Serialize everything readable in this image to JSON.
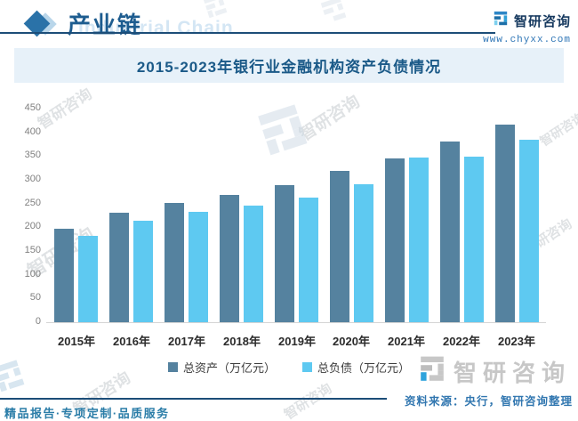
{
  "header": {
    "brand_zh": "产业链",
    "brand_watermark": "Industrial Chain",
    "logo_text": "智研咨询",
    "website": "www.chyxx.com"
  },
  "title": {
    "text": "2015-2023年银行业金融机构资产负债情况"
  },
  "chart_data": {
    "type": "bar",
    "title": "2015-2023年银行业金融机构资产负债情况",
    "categories": [
      "2015年",
      "2016年",
      "2017年",
      "2018年",
      "2019年",
      "2020年",
      "2021年",
      "2022年",
      "2023年"
    ],
    "series": [
      {
        "name": "总资产（万亿元）",
        "color": "#55829f",
        "values": [
          197,
          230,
          251,
          268,
          288,
          318,
          345,
          380,
          417
        ]
      },
      {
        "name": "总负债（万亿元）",
        "color": "#5ec9f1",
        "values": [
          182,
          213,
          232,
          245,
          263,
          291,
          347,
          348,
          384
        ]
      }
    ],
    "xlabel": "",
    "ylabel": "",
    "ylim": [
      0,
      450
    ],
    "ytick_step": 50,
    "grid": false,
    "legend_position": "bottom"
  },
  "footer": {
    "source_label": "资料来源：央行，智研咨询整理",
    "services": "精品报告·专项定制·品质服务",
    "logo_text": "智研咨询"
  },
  "watermark": {
    "text": "智研咨询"
  },
  "colors": {
    "accent_dark_blue": "#1c4d78",
    "brand_blue": "#1d5c8f",
    "title_band_bg": "#e7f1f9",
    "bar_assets": "#55829f",
    "bar_liabilities": "#5ec9f1",
    "link_blue": "#2e75b6",
    "source_blue": "#3277b0",
    "services_teal": "#2b7da8"
  }
}
